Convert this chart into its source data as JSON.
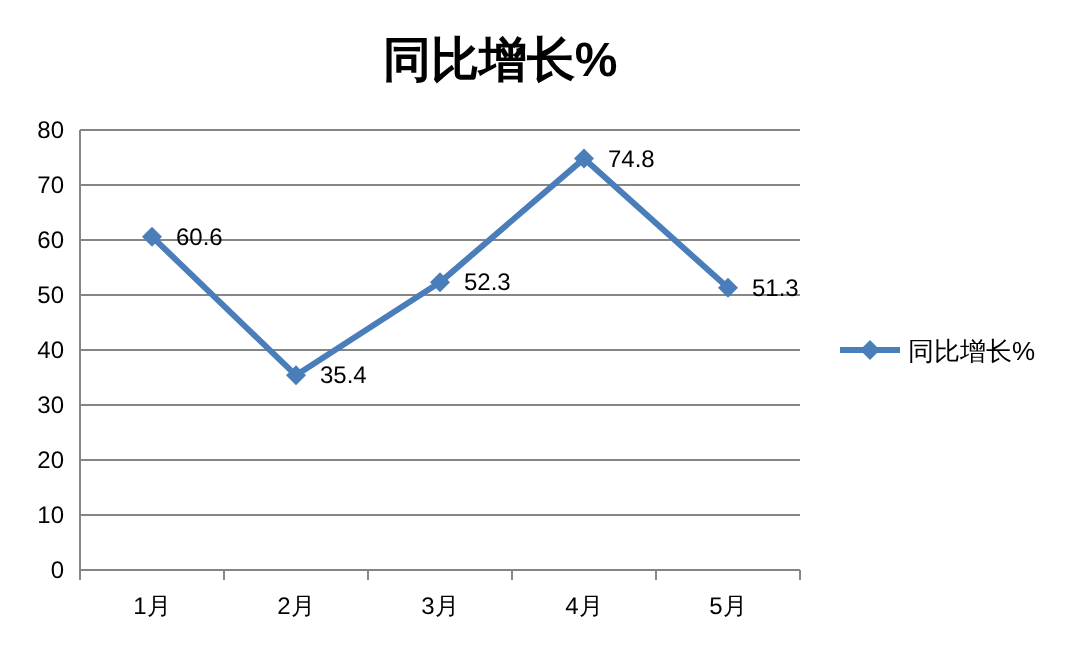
{
  "chart_data": {
    "type": "line",
    "title": "同比增长%",
    "categories": [
      "1月",
      "2月",
      "3月",
      "4月",
      "5月"
    ],
    "series": [
      {
        "name": "同比增长%",
        "color": "#4a7ebb",
        "values": [
          60.6,
          35.4,
          52.3,
          74.8,
          51.3
        ]
      }
    ],
    "ylim": [
      0,
      80
    ],
    "yticks": [
      0,
      10,
      20,
      30,
      40,
      50,
      60,
      70,
      80
    ],
    "grid": "y",
    "legend": "right",
    "marker": "diamond",
    "line_style": "solid",
    "data_labels": true
  }
}
